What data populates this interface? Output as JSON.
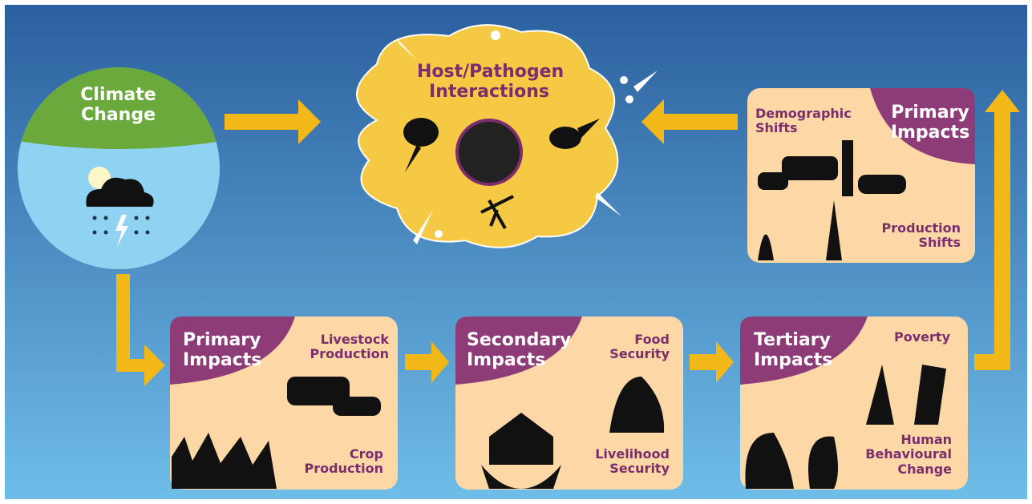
{
  "climate": {
    "label": "Climate Change"
  },
  "cloud": {
    "label": "Host/Pathogen Interactions"
  },
  "boxes": [
    {
      "title": "Primary Impacts",
      "labels": [
        "Demographic Shifts",
        "Production Shifts"
      ]
    },
    {
      "title": "Primary Impacts",
      "labels": [
        "Livestock Production",
        "Crop Production"
      ]
    },
    {
      "title": "Secondary Impacts",
      "labels": [
        "Food Security",
        "Livelihood Security"
      ]
    },
    {
      "title": "Tertiary Impacts",
      "labels": [
        "Poverty",
        "Human Behavioural Change"
      ]
    }
  ]
}
